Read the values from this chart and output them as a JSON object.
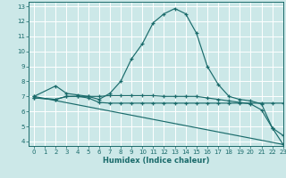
{
  "xlabel": "Humidex (Indice chaleur)",
  "bg_color": "#cce8e8",
  "line_color": "#1a6b6b",
  "grid_color": "#ffffff",
  "xlim": [
    -0.5,
    23
  ],
  "ylim": [
    3.7,
    13.3
  ],
  "xticks": [
    0,
    1,
    2,
    3,
    4,
    5,
    6,
    7,
    8,
    9,
    10,
    11,
    12,
    13,
    14,
    15,
    16,
    17,
    18,
    19,
    20,
    21,
    22,
    23
  ],
  "yticks": [
    4,
    5,
    6,
    7,
    8,
    9,
    10,
    11,
    12,
    13
  ],
  "line1_x": [
    0,
    2,
    3,
    4,
    5,
    6,
    7,
    8,
    9,
    10,
    11,
    12,
    13,
    14,
    15,
    16,
    17,
    18,
    19,
    20,
    21,
    22,
    23
  ],
  "line1_y": [
    7.0,
    7.7,
    7.2,
    7.1,
    7.0,
    6.8,
    7.2,
    8.0,
    9.5,
    10.5,
    11.9,
    12.5,
    12.85,
    12.5,
    11.2,
    9.0,
    7.8,
    7.0,
    6.8,
    6.7,
    6.5,
    4.9,
    3.8
  ],
  "line2_x": [
    0,
    2,
    3,
    4,
    5,
    6,
    7,
    8,
    9,
    10,
    11,
    12,
    13,
    14,
    15,
    16,
    17,
    18,
    19,
    20,
    21,
    22,
    23
  ],
  "line2_y": [
    6.9,
    6.8,
    7.0,
    7.0,
    6.9,
    6.6,
    6.55,
    6.55,
    6.55,
    6.55,
    6.55,
    6.55,
    6.55,
    6.55,
    6.55,
    6.55,
    6.55,
    6.55,
    6.55,
    6.55,
    6.55,
    6.55,
    6.55
  ],
  "line3_x": [
    0,
    2,
    3,
    4,
    5,
    6,
    7,
    8,
    9,
    10,
    11,
    12,
    13,
    14,
    15,
    16,
    17,
    18,
    19,
    20,
    21,
    22,
    23
  ],
  "line3_y": [
    6.9,
    6.8,
    7.0,
    7.0,
    7.0,
    7.0,
    7.05,
    7.05,
    7.05,
    7.05,
    7.05,
    7.0,
    7.0,
    7.0,
    7.0,
    6.9,
    6.8,
    6.7,
    6.6,
    6.5,
    6.1,
    4.9,
    4.4
  ],
  "line4_x": [
    0,
    23
  ],
  "line4_y": [
    7.0,
    3.8
  ]
}
